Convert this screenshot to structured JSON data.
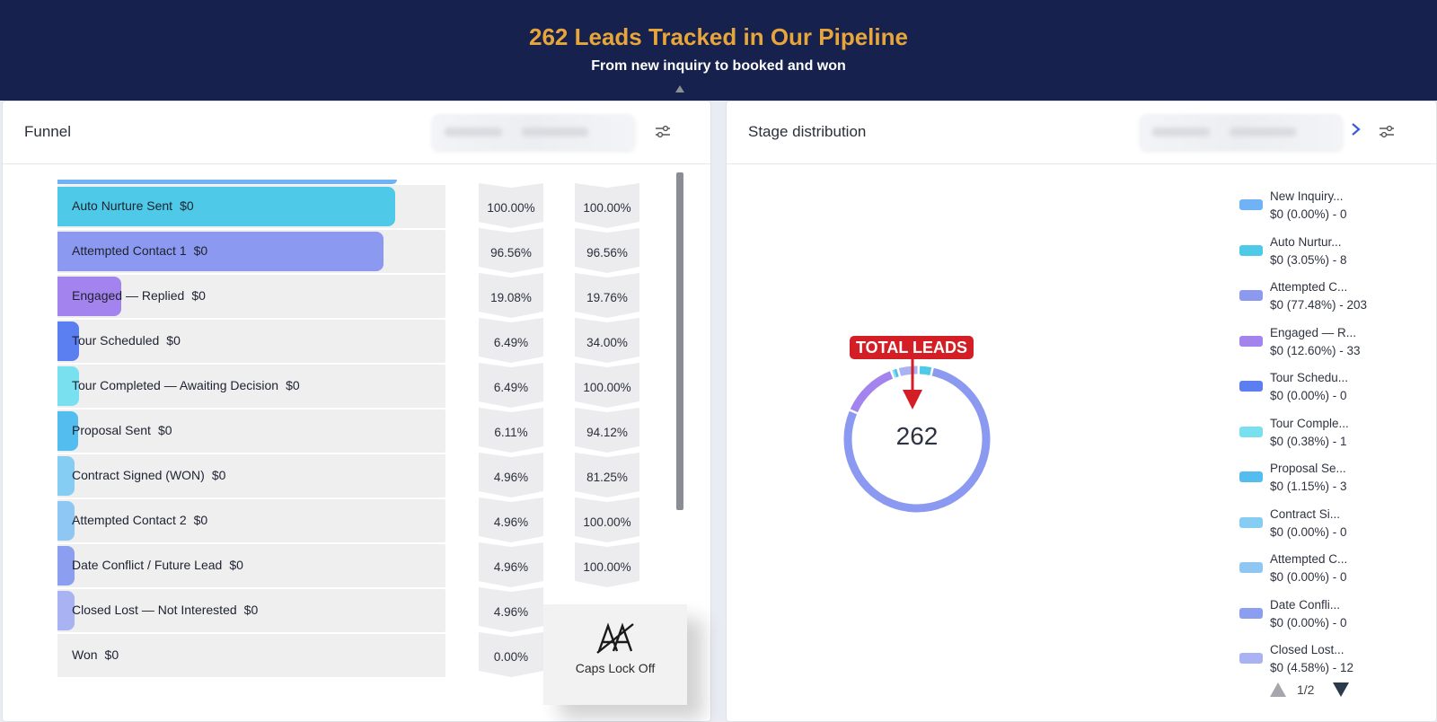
{
  "banner": {
    "title": "262 Leads Tracked in Our Pipeline",
    "subtitle": "From new inquiry to booked and won"
  },
  "funnel": {
    "title": "Funnel",
    "icon": "filter-sliders-icon",
    "stages": [
      {
        "name": "Auto Nurture Sent",
        "amount": "$0",
        "fill": 0.87,
        "color": "#4fc9e8",
        "pct1": "100.00%",
        "pct2": "100.00%"
      },
      {
        "name": "Attempted Contact 1",
        "amount": "$0",
        "fill": 0.84,
        "color": "#8b9af0",
        "pct1": "96.56%",
        "pct2": "96.56%"
      },
      {
        "name": "Engaged — Replied",
        "amount": "$0",
        "fill": 0.165,
        "color": "#a383ee",
        "pct1": "19.08%",
        "pct2": "19.76%"
      },
      {
        "name": "Tour Scheduled",
        "amount": "$0",
        "fill": 0.056,
        "color": "#5b7ff0",
        "pct1": "6.49%",
        "pct2": "34.00%"
      },
      {
        "name": "Tour Completed — Awaiting Decision",
        "amount": "$0",
        "fill": 0.056,
        "color": "#79e0f0",
        "pct1": "6.49%",
        "pct2": "100.00%"
      },
      {
        "name": "Proposal Sent",
        "amount": "$0",
        "fill": 0.053,
        "color": "#54bdf0",
        "pct1": "6.11%",
        "pct2": "94.12%"
      },
      {
        "name": "Contract Signed (WON)",
        "amount": "$0",
        "fill": 0.043,
        "color": "#86cdf4",
        "pct1": "4.96%",
        "pct2": "81.25%"
      },
      {
        "name": "Attempted Contact 2",
        "amount": "$0",
        "fill": 0.043,
        "color": "#8ec7f4",
        "pct1": "4.96%",
        "pct2": "100.00%"
      },
      {
        "name": "Date Conflict / Future Lead",
        "amount": "$0",
        "fill": 0.043,
        "color": "#8c9ef0",
        "pct1": "4.96%",
        "pct2": "100.00%"
      },
      {
        "name": "Closed Lost — Not Interested",
        "amount": "$0",
        "fill": 0.043,
        "color": "#a9b3f3",
        "pct1": "4.96%",
        "pct2": ""
      },
      {
        "name": "Won",
        "amount": "$0",
        "fill": 0,
        "color": "#8c9ef0",
        "pct1": "0.00%",
        "pct2": ""
      }
    ]
  },
  "caps_lock": {
    "label": "Caps Lock Off",
    "icon": "caps-lock-off-icon"
  },
  "distribution": {
    "title": "Stage distribution",
    "total": "262",
    "callout": "TOTAL LEADS",
    "icon": "filter-sliders-icon",
    "legend": [
      {
        "name": "New Inquiry...",
        "value": "$0 (0.00%) - 0",
        "color": "#6fb2f5"
      },
      {
        "name": "Auto Nurtur...",
        "value": "$0 (3.05%) - 8",
        "color": "#4fc9e8"
      },
      {
        "name": "Attempted C...",
        "value": "$0 (77.48%) - 203",
        "color": "#8b9af0"
      },
      {
        "name": "Engaged — R...",
        "value": "$0 (12.60%) - 33",
        "color": "#a383ee"
      },
      {
        "name": "Tour Schedu...",
        "value": "$0 (0.00%) - 0",
        "color": "#5b7ff0"
      },
      {
        "name": "Tour Comple...",
        "value": "$0 (0.38%) - 1",
        "color": "#79e0f0"
      },
      {
        "name": "Proposal Se...",
        "value": "$0 (1.15%) - 3",
        "color": "#54bdf0"
      },
      {
        "name": "Contract Si...",
        "value": "$0 (0.00%) - 0",
        "color": "#86cdf4"
      },
      {
        "name": "Attempted C...",
        "value": "$0 (0.00%) - 0",
        "color": "#8ec7f4"
      },
      {
        "name": "Date Confli...",
        "value": "$0 (0.00%) - 0",
        "color": "#8c9ef0"
      },
      {
        "name": "Closed Lost...",
        "value": "$0 (4.58%) - 12",
        "color": "#a9b3f3"
      }
    ],
    "pager": "1/2",
    "donut_segments": [
      {
        "name": "Auto Nurture Sent",
        "pct": 3.05,
        "color": "#4fc9e8"
      },
      {
        "name": "Attempted Contact 1",
        "pct": 77.48,
        "color": "#8b9af0"
      },
      {
        "name": "Engaged — Replied",
        "pct": 12.6,
        "color": "#a383ee"
      },
      {
        "name": "Tour Completed",
        "pct": 0.38,
        "color": "#79e0f0"
      },
      {
        "name": "Proposal Sent",
        "pct": 1.15,
        "color": "#54bdf0"
      },
      {
        "name": "Closed Lost",
        "pct": 4.58,
        "color": "#a9b3f3"
      }
    ]
  }
}
